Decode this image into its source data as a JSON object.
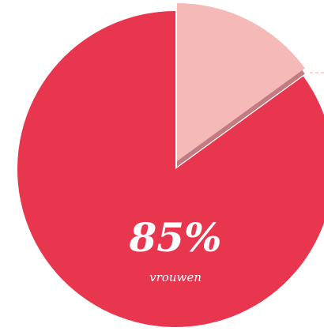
{
  "chart_data": {
    "type": "pie",
    "categories": [
      null,
      "vrouwen"
    ],
    "values": [
      15,
      85
    ],
    "value_labels": [
      null,
      "85%"
    ],
    "colors": [
      "#f5b9b8",
      "#e8364f"
    ],
    "explode": [
      true,
      false
    ]
  }
}
